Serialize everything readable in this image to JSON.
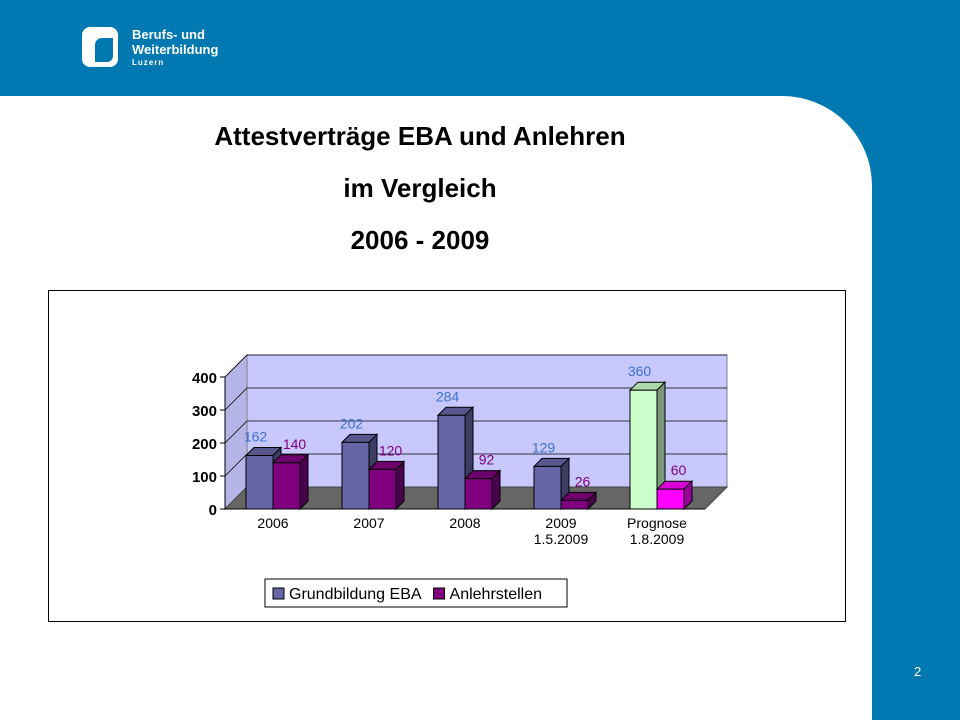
{
  "logo": {
    "line1": "Berufs- und",
    "line2": "Weiterbildung",
    "line3": "Luzern"
  },
  "title": {
    "line1": "Attestverträge EBA und Anlehren",
    "line2": "im Vergleich",
    "line3": "2006 - 2009"
  },
  "page_number": "2",
  "colors": {
    "brand_blue": "#0079b2",
    "floor": "#666666",
    "wall": "#c8c8ff"
  },
  "chart_data": {
    "type": "bar",
    "title": "",
    "xlabel": "",
    "ylabel": "",
    "categories": [
      [
        "2006"
      ],
      [
        "2007"
      ],
      [
        "2008"
      ],
      [
        "2009",
        "1.5.2009"
      ],
      [
        "Prognose",
        "1.8.2009"
      ]
    ],
    "ylim": [
      0,
      400
    ],
    "yticks": [
      0,
      100,
      200,
      300,
      400
    ],
    "grid": true,
    "legend_position": "bottom",
    "series": [
      {
        "name": "Grundbildung EBA",
        "values": [
          162,
          202,
          284,
          129,
          360
        ],
        "color": "#6666a6",
        "label_color": "#3b72cc",
        "point_colors": [
          "#6666a6",
          "#6666a6",
          "#6666a6",
          "#6666a6",
          "#ccffcc"
        ]
      },
      {
        "name": "Anlehrstellen",
        "values": [
          140,
          120,
          92,
          26,
          60
        ],
        "color": "#800080",
        "label_color": "#800080",
        "point_colors": [
          "#800080",
          "#800080",
          "#800080",
          "#800080",
          "#ff00ff"
        ]
      }
    ]
  }
}
